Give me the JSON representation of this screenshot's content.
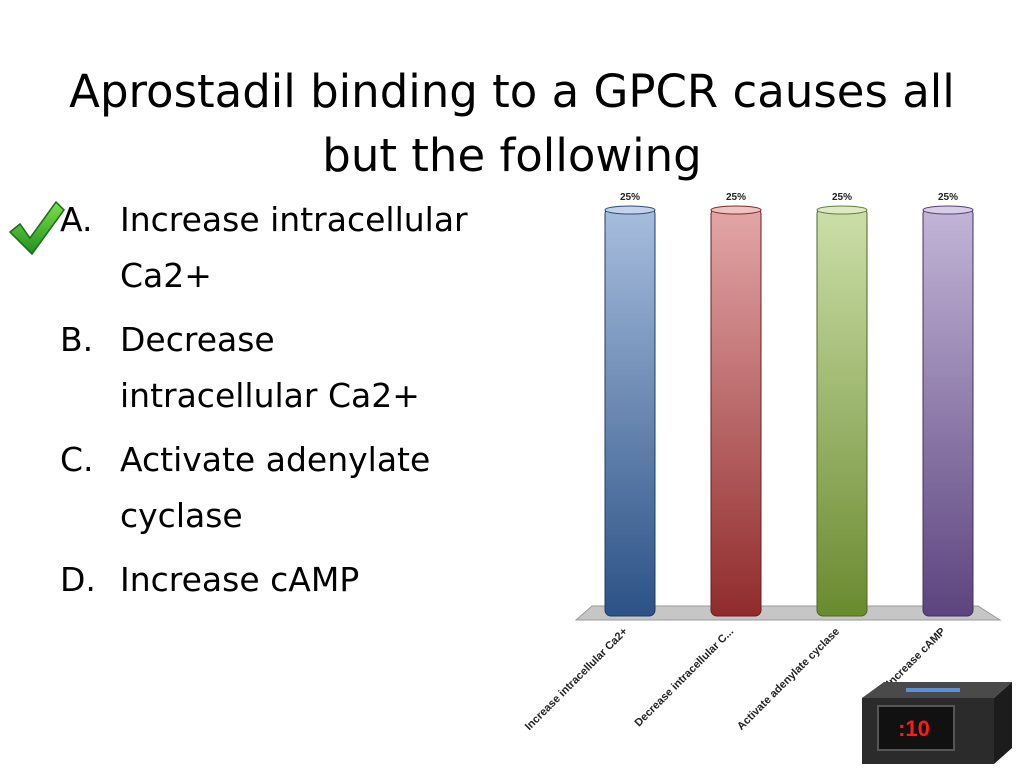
{
  "slide": {
    "title": "Aprostadil binding to a GPCR causes all but the following"
  },
  "options": [
    {
      "letter": "A.",
      "text": "Increase intracellular Ca2+",
      "correct": true
    },
    {
      "letter": "B.",
      "text": "Decrease intracellular Ca2+",
      "correct": false
    },
    {
      "letter": "C.",
      "text": "Activate adenylate cyclase",
      "correct": false
    },
    {
      "letter": "D.",
      "text": "Increase cAMP",
      "correct": false
    }
  ],
  "chart_data": {
    "type": "bar",
    "categories": [
      "Increase intracellular Ca2+",
      "Decrease intracellular C...",
      "Activate adenylate cyclase",
      "Increase cAMP"
    ],
    "values": [
      25,
      25,
      25,
      25
    ],
    "value_labels": [
      "25%",
      "25%",
      "25%",
      "25%"
    ],
    "colors": [
      "#3b6db3",
      "#c0393b",
      "#8db83f",
      "#7a5aa8"
    ],
    "ylim": [
      0,
      25
    ],
    "grid": false,
    "legend": false,
    "style": "3d-cylinder"
  },
  "timer": {
    "text": ":10",
    "color": "#ff1a1a"
  },
  "icons": {
    "correct_mark": "checkmark-icon"
  }
}
